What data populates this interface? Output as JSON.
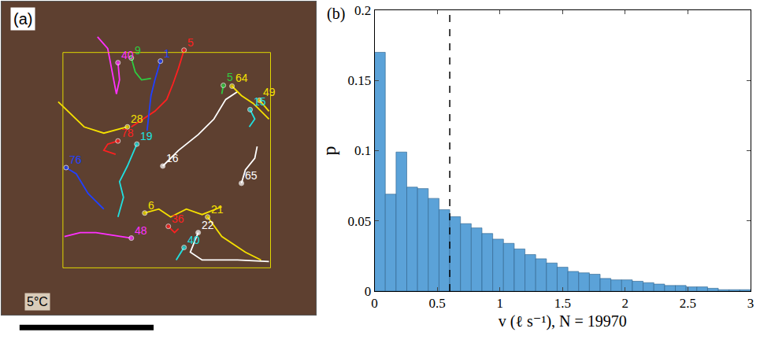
{
  "chart_data": [
    {
      "type": "trajectories",
      "panel": "(a)",
      "annotations": [
        "5°C"
      ],
      "xlim": [
        0,
        400
      ],
      "ylim": [
        400,
        0
      ],
      "tick_labels": false,
      "grid": false,
      "roi": {
        "x": [
          78,
          342
        ],
        "y": [
          65,
          340
        ],
        "color": "#e0d800"
      },
      "tracks": [
        {
          "name": "9",
          "color": "#2ecc40",
          "x": [
            165,
            170,
            178,
            190
          ],
          "y": [
            72,
            90,
            100,
            98
          ]
        },
        {
          "name": "5",
          "color": "#ff2020",
          "x": [
            232,
            225,
            218,
            210,
            195,
            180,
            165
          ],
          "y": [
            62,
            85,
            105,
            125,
            140,
            150,
            160
          ]
        },
        {
          "name": "1",
          "color": "#2040ff",
          "x": [
            202,
            195,
            190,
            188,
            185
          ],
          "y": [
            76,
            100,
            120,
            140,
            165
          ]
        },
        {
          "name": "40",
          "color": "#ff30ff",
          "x": [
            148,
            150,
            146,
            135,
            122
          ],
          "y": [
            78,
            100,
            118,
            60,
            45
          ]
        },
        {
          "name": "28",
          "color": "#f5e000",
          "x": [
            160,
            130,
            105,
            85,
            72
          ],
          "y": [
            160,
            168,
            160,
            140,
            128
          ]
        },
        {
          "name": "78",
          "color": "#ff2020",
          "x": [
            148,
            135,
            130,
            145
          ],
          "y": [
            178,
            182,
            190,
            195
          ]
        },
        {
          "name": "19",
          "color": "#20e0e0",
          "x": [
            172,
            160,
            150,
            155,
            148
          ],
          "y": [
            182,
            210,
            230,
            250,
            275
          ]
        },
        {
          "name": "16",
          "color": "#ffffff",
          "x": [
            205,
            225,
            250,
            270,
            285,
            300
          ],
          "y": [
            210,
            190,
            170,
            150,
            125,
            115
          ]
        },
        {
          "name": "5",
          "color": "#2ecc40",
          "x": [
            282,
            280
          ],
          "y": [
            107,
            118
          ]
        },
        {
          "name": "64",
          "color": "#f5e000",
          "x": [
            293,
            305,
            320,
            340
          ],
          "y": [
            108,
            120,
            130,
            150
          ]
        },
        {
          "name": "49",
          "color": "#f5e000",
          "x": [
            328,
            340
          ],
          "y": [
            126,
            140
          ]
        },
        {
          "name": "15",
          "color": "#20e0e0",
          "x": [
            316,
            322,
            315
          ],
          "y": [
            138,
            150,
            160
          ]
        },
        {
          "name": "65",
          "color": "#ffffff",
          "x": [
            305,
            310,
            322,
            325
          ],
          "y": [
            232,
            215,
            200,
            185
          ]
        },
        {
          "name": "76",
          "color": "#2040ff",
          "x": [
            82,
            95,
            110,
            130
          ],
          "y": [
            212,
            220,
            245,
            265
          ]
        },
        {
          "name": "6",
          "color": "#f5e000",
          "x": [
            182,
            200,
            215,
            235,
            255,
            280
          ],
          "y": [
            270,
            265,
            275,
            265,
            272,
            262
          ]
        },
        {
          "name": "21",
          "color": "#f5e000",
          "x": [
            262,
            280,
            310,
            330
          ],
          "y": [
            275,
            300,
            320,
            330
          ]
        },
        {
          "name": "36",
          "color": "#ff2020",
          "x": [
            212,
            220,
            225
          ],
          "y": [
            287,
            295,
            290
          ]
        },
        {
          "name": "22",
          "color": "#ffffff",
          "x": [
            250,
            240,
            255,
            300,
            340
          ],
          "y": [
            295,
            320,
            330,
            330,
            332
          ]
        },
        {
          "name": "48",
          "color": "#ff30ff",
          "x": [
            165,
            120,
            100,
            80
          ],
          "y": [
            302,
            295,
            295,
            300
          ]
        },
        {
          "name": "40",
          "color": "#20e0e0",
          "x": [
            232,
            222
          ],
          "y": [
            314,
            330
          ]
        }
      ]
    },
    {
      "type": "histogram",
      "panel": "(b)",
      "x_label": "v (ℓ s⁻¹), N = 19970",
      "y_label": "p",
      "color": "#5ba2d8",
      "bins": [
        0,
        0.0857,
        0.1714,
        0.2571,
        0.3429,
        0.4286,
        0.5143,
        0.6,
        0.6857,
        0.7714,
        0.8571,
        0.9429,
        1.0286,
        1.1143,
        1.2,
        1.2857,
        1.3714,
        1.4571,
        1.5429,
        1.6286,
        1.7143,
        1.8,
        1.8857,
        1.9714,
        2.0571,
        2.1429,
        2.2286,
        2.3143,
        2.4,
        2.4857,
        2.5714,
        2.6571,
        2.7429,
        2.8286,
        2.9143,
        3
      ],
      "values": [
        0.17,
        0.069,
        0.099,
        0.074,
        0.073,
        0.066,
        0.058,
        0.053,
        0.048,
        0.045,
        0.041,
        0.037,
        0.034,
        0.03,
        0.026,
        0.023,
        0.02,
        0.017,
        0.014,
        0.013,
        0.012,
        0.009,
        0.008,
        0.008,
        0.007,
        0.006,
        0.005,
        0.004,
        0.004,
        0.003,
        0.003,
        0.002,
        0.001,
        0.001,
        0.001
      ],
      "vline": 0.6,
      "line_style": "dashed",
      "xlim": [
        0,
        3
      ],
      "ylim": [
        0,
        0.2
      ],
      "xticks": [
        0,
        0.5,
        1,
        1.5,
        2,
        2.5,
        3
      ],
      "yticks": [
        0,
        0.05,
        0.1,
        0.15,
        0.2
      ],
      "grid": false
    }
  ]
}
